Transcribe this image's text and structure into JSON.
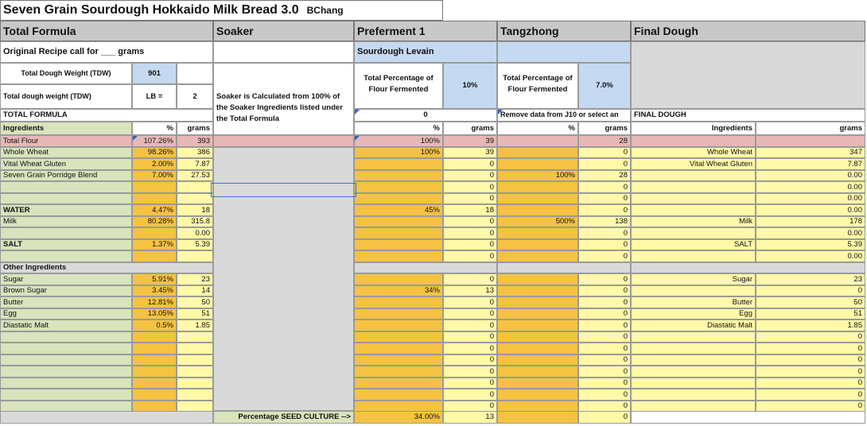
{
  "title": "Seven Grain Sourdough Hokkaido Milk Bread 3.0",
  "author": "BChang",
  "sections": {
    "total_formula": "Total Formula",
    "soaker": "Soaker",
    "preferment": "Preferment 1",
    "tangzhong": "Tangzhong",
    "final_dough": "Final Dough"
  },
  "original_recipe_label": "Original Recipe call for ___ grams",
  "sourdough_levain_label": "Sourdough Levain",
  "total_dough_weight_label": "Total Dough Weight (TDW)",
  "total_dough_weight_value": "901",
  "tdw_lb_label": "Total dough weight (TDW)",
  "lb_label": "LB =",
  "lb_value": "2",
  "soaker_note": "Soaker is Calculated from 100% of the Soaker Ingredients listed under the Total Formula",
  "pf_flour_label": "Total Percentage of Flour Fermented",
  "pf_flour_value": "10%",
  "tz_flour_label": "Total Percentage of Flour Fermented",
  "tz_flour_value": "7.0%",
  "total_formula_label": "TOTAL FORMULA",
  "pf_zero": "0",
  "tz_remove_note": "Remove data from J10 or select an",
  "final_dough_label": "FINAL DOUGH",
  "col_ingredients": "Ingredients",
  "col_pct": "%",
  "col_grams": "grams",
  "col_fd_ingredients": "Ingredients",
  "col_fd_grams": "grams",
  "other_ingredients_label": "Other Ingredients",
  "seed_culture_label": "Percentage SEED CULTURE  -->",
  "seed_culture_pct": "34.00%",
  "seed_culture_grams": "13",
  "seed_culture_tz_grams": "0",
  "rows": [
    {
      "kind": "flour",
      "name": "Total Flour",
      "pct": "107.26%",
      "grams": "393",
      "pf_pct": "100%",
      "pf_grams": "39",
      "tz_pct": "",
      "tz_grams": "28",
      "fd_name": "",
      "fd_grams": ""
    },
    {
      "kind": "data",
      "name": "Whole Wheat",
      "pct": "98.26%",
      "grams": "386",
      "pf_pct": "100%",
      "pf_grams": "39",
      "tz_pct": "",
      "tz_grams": "0",
      "fd_name": "Whole Wheat",
      "fd_grams": "347"
    },
    {
      "kind": "data",
      "name": "Vital Wheat Gluten",
      "pct": "2.00%",
      "grams": "7.87",
      "pf_pct": "",
      "pf_grams": "0",
      "tz_pct": "",
      "tz_grams": "0",
      "fd_name": "Vital Wheat Gluten",
      "fd_grams": "7.87"
    },
    {
      "kind": "data",
      "name": "Seven Grain Porridge Blend",
      "pct": "7.00%",
      "grams": "27.53",
      "pf_pct": "",
      "pf_grams": "0",
      "tz_pct": "100%",
      "tz_grams": "28",
      "fd_name": "",
      "fd_grams": "0.00"
    },
    {
      "kind": "data",
      "name": "",
      "pct": "",
      "grams": "",
      "pf_pct": "",
      "pf_grams": "0",
      "tz_pct": "",
      "tz_grams": "0",
      "fd_name": "",
      "fd_grams": "0.00"
    },
    {
      "kind": "data",
      "name": "",
      "pct": "",
      "grams": "",
      "pf_pct": "",
      "pf_grams": "0",
      "tz_pct": "",
      "tz_grams": "0",
      "fd_name": "",
      "fd_grams": "0.00"
    },
    {
      "kind": "bold",
      "name": "WATER",
      "pct": "4.47%",
      "grams": "18",
      "pf_pct": "45%",
      "pf_grams": "18",
      "tz_pct": "",
      "tz_grams": "0",
      "fd_name": "",
      "fd_grams": "0.00"
    },
    {
      "kind": "data",
      "name": "Milk",
      "pct": "80.28%",
      "grams": "315.8",
      "pf_pct": "",
      "pf_grams": "0",
      "tz_pct": "500%",
      "tz_grams": "138",
      "fd_name": "Milk",
      "fd_grams": "178"
    },
    {
      "kind": "data",
      "name": "",
      "pct": "",
      "grams": "0.00",
      "pf_pct": "",
      "pf_grams": "0",
      "tz_pct": "",
      "tz_grams": "0",
      "fd_name": "",
      "fd_grams": "0.00"
    },
    {
      "kind": "bold",
      "name": "SALT",
      "pct": "1.37%",
      "grams": "5.39",
      "pf_pct": "",
      "pf_grams": "0",
      "tz_pct": "",
      "tz_grams": "0",
      "fd_name": "SALT",
      "fd_grams": "5.39"
    },
    {
      "kind": "data",
      "name": "",
      "pct": "",
      "grams": "",
      "pf_pct": "",
      "pf_grams": "0",
      "tz_pct": "",
      "tz_grams": "0",
      "fd_name": "",
      "fd_grams": "0.00"
    },
    {
      "kind": "other",
      "name": "Other Ingredients"
    },
    {
      "kind": "data",
      "name": "Sugar",
      "pct": "5.91%",
      "grams": "23",
      "pf_pct": "",
      "pf_grams": "0",
      "tz_pct": "",
      "tz_grams": "0",
      "fd_name": "Sugar",
      "fd_grams": "23"
    },
    {
      "kind": "data",
      "name": "Brown Sugar",
      "pct": "3.45%",
      "grams": "14",
      "pf_pct": "34%",
      "pf_grams": "13",
      "tz_pct": "",
      "tz_grams": "0",
      "fd_name": "",
      "fd_grams": "0"
    },
    {
      "kind": "data",
      "name": "Butter",
      "pct": "12.81%",
      "grams": "50",
      "pf_pct": "",
      "pf_grams": "0",
      "tz_pct": "",
      "tz_grams": "0",
      "fd_name": "Butter",
      "fd_grams": "50"
    },
    {
      "kind": "data",
      "name": "Egg",
      "pct": "13.05%",
      "grams": "51",
      "pf_pct": "",
      "pf_grams": "0",
      "tz_pct": "",
      "tz_grams": "0",
      "fd_name": "Egg",
      "fd_grams": "51"
    },
    {
      "kind": "data",
      "name": "Diastatic Malt",
      "pct": "0.5%",
      "grams": "1.85",
      "pf_pct": "",
      "pf_grams": "0",
      "tz_pct": "",
      "tz_grams": "0",
      "fd_name": "Diastatic Malt",
      "fd_grams": "1.85"
    },
    {
      "kind": "data",
      "name": "",
      "pct": "",
      "grams": "",
      "pf_pct": "",
      "pf_grams": "0",
      "tz_pct": "",
      "tz_grams": "0",
      "fd_name": "",
      "fd_grams": "0"
    },
    {
      "kind": "data",
      "name": "",
      "pct": "",
      "grams": "",
      "pf_pct": "",
      "pf_grams": "0",
      "tz_pct": "",
      "tz_grams": "0",
      "fd_name": "",
      "fd_grams": "0"
    },
    {
      "kind": "data",
      "name": "",
      "pct": "",
      "grams": "",
      "pf_pct": "",
      "pf_grams": "0",
      "tz_pct": "",
      "tz_grams": "0",
      "fd_name": "",
      "fd_grams": "0"
    },
    {
      "kind": "data",
      "name": "",
      "pct": "",
      "grams": "",
      "pf_pct": "",
      "pf_grams": "0",
      "tz_pct": "",
      "tz_grams": "0",
      "fd_name": "",
      "fd_grams": "0"
    },
    {
      "kind": "data",
      "name": "",
      "pct": "",
      "grams": "",
      "pf_pct": "",
      "pf_grams": "0",
      "tz_pct": "",
      "tz_grams": "0",
      "fd_name": "",
      "fd_grams": "0"
    },
    {
      "kind": "data",
      "name": "",
      "pct": "",
      "grams": "",
      "pf_pct": "",
      "pf_grams": "0",
      "tz_pct": "",
      "tz_grams": "0",
      "fd_name": "",
      "fd_grams": "0"
    },
    {
      "kind": "data",
      "name": "",
      "pct": "",
      "grams": "",
      "pf_pct": "",
      "pf_grams": "0",
      "tz_pct": "",
      "tz_grams": "0",
      "fd_name": "",
      "fd_grams": "0"
    }
  ]
}
